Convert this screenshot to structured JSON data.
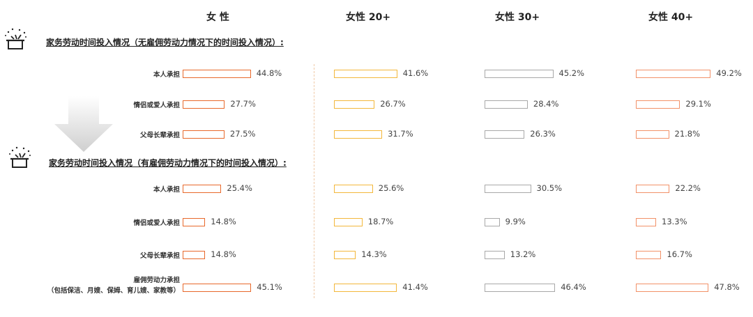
{
  "columns": [
    {
      "label": "女 性",
      "color": "#e8682a"
    },
    {
      "label": "女性 20+",
      "color": "#f3b73a"
    },
    {
      "label": "女性 30+",
      "color": "#a8a8a8"
    },
    {
      "label": "女性 40+",
      "color": "#f29168"
    }
  ],
  "sections": [
    {
      "title": "家务劳动时间投入情况（无雇佣劳动力情况下的时间投入情况）:",
      "icon": "cooking-pot-sparkle-icon"
    },
    {
      "title": "家务劳动时间投入情况（有雇佣劳动力情况下的时间投入情况）:",
      "icon": "cooking-pot-sparkle-icon"
    }
  ],
  "chart_data": {
    "type": "bar",
    "orientation": "horizontal",
    "unit": "%",
    "series": [
      "女 性",
      "女性 20+",
      "女性 30+",
      "女性 40+"
    ],
    "groups": [
      {
        "section": "家务劳动时间投入情况（无雇佣劳动力情况下的时间投入情况）:",
        "rows": [
          {
            "label": "本人承担",
            "values": [
              44.8,
              41.6,
              45.2,
              49.2
            ],
            "display": [
              "44.8%",
              "41.6%",
              "45.2%",
              "49.2%"
            ]
          },
          {
            "label": "情侣或爱人承担",
            "values": [
              27.7,
              26.7,
              28.4,
              29.1
            ],
            "display": [
              "27.7%",
              "26.7%",
              "28.4%",
              "29.1%"
            ]
          },
          {
            "label": "父母长辈承担",
            "values": [
              27.5,
              31.7,
              26.3,
              21.8
            ],
            "display": [
              "27.5%",
              "31.7%",
              "26.3%",
              "21.8%"
            ]
          }
        ]
      },
      {
        "section": "家务劳动时间投入情况（有雇佣劳动力情况下的时间投入情况）:",
        "rows": [
          {
            "label": "本人承担",
            "values": [
              25.4,
              25.6,
              30.5,
              22.2
            ],
            "display": [
              "25.4%",
              "25.6%",
              "30.5%",
              "22.2%"
            ]
          },
          {
            "label": "情侣或爱人承担",
            "values": [
              14.8,
              18.7,
              9.9,
              13.3
            ],
            "display": [
              "14.8%",
              "18.7%",
              "9.9%",
              "13.3%"
            ]
          },
          {
            "label": "父母长辈承担",
            "values": [
              14.8,
              14.3,
              13.2,
              16.7
            ],
            "display": [
              "14.8%",
              "14.3%",
              "13.2%",
              "16.7%"
            ]
          },
          {
            "label": "雇佣劳动力承担",
            "sublabel": "（包括保洁、月嫂、保姆、育儿嫂、家教等）",
            "values": [
              45.1,
              41.4,
              46.4,
              47.8
            ],
            "display": [
              "45.1%",
              "41.4%",
              "46.4%",
              "47.8%"
            ]
          }
        ]
      }
    ]
  }
}
